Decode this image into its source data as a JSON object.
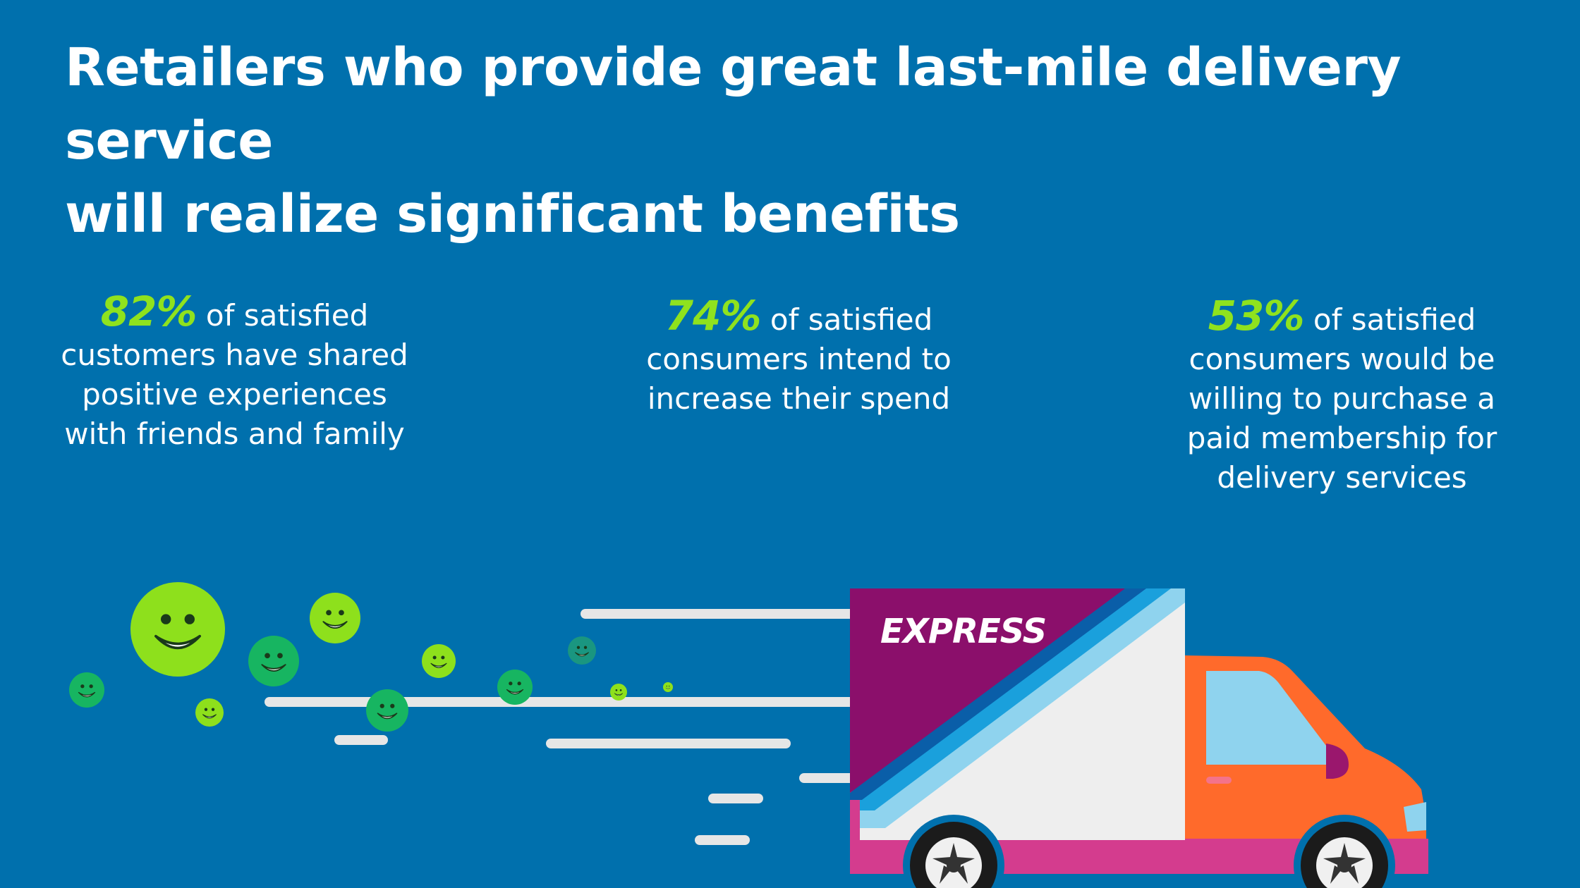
{
  "title": {
    "line1": "Retailers who provide great last-mile delivery service",
    "line2": "will realize significant benefits"
  },
  "stats": [
    {
      "percent": "82%",
      "lead": " of satisfied",
      "lines": [
        "customers have shared",
        "positive experiences",
        "with friends and family"
      ]
    },
    {
      "percent": "74%",
      "lead": " of satisfied",
      "lines": [
        "consumers intend to",
        "increase their spend"
      ]
    },
    {
      "percent": "53%",
      "lead": " of satisfied",
      "lines": [
        "consumers would be",
        "willing to purchase a",
        "paid membership for",
        "delivery services"
      ]
    }
  ],
  "truck": {
    "label": "EXPRESS",
    "icon": "delivery-truck-icon"
  },
  "smiley_icon": "smiley-face-icon",
  "colors": {
    "background": "#0070ad",
    "accent_green": "#8fe21e",
    "truck_box_purple": "#8b0f6b",
    "truck_cab_orange": "#ff6a2b",
    "truck_trim_pink": "#d43c8e"
  }
}
